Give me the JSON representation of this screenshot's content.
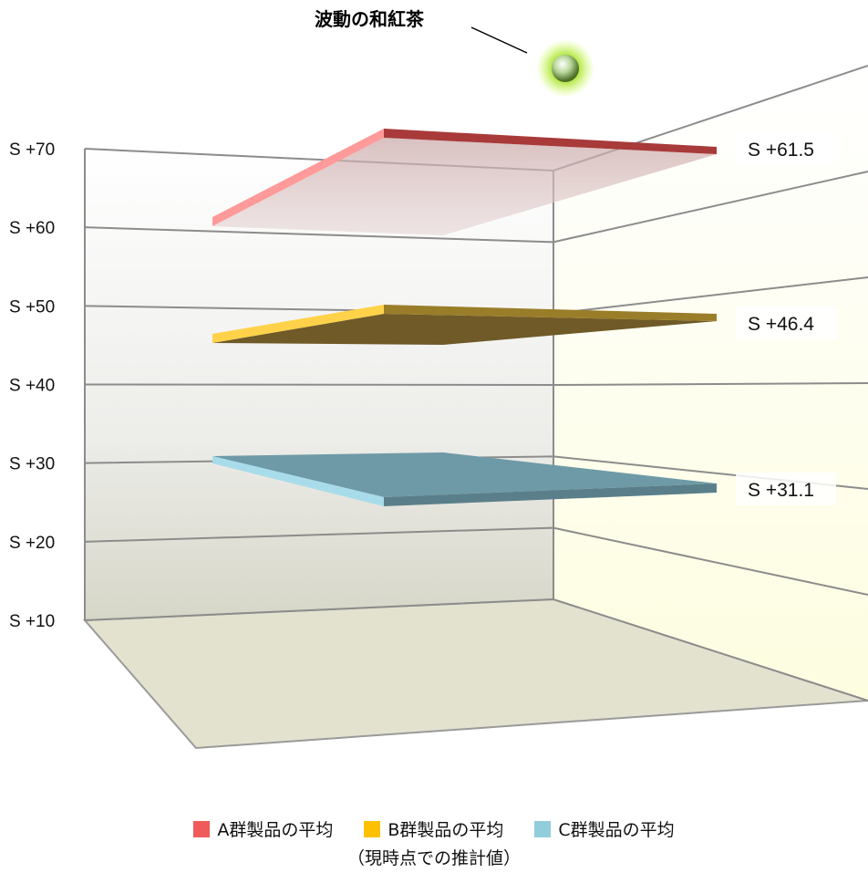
{
  "chart_data": {
    "type": "3d-bar-planes",
    "annotation": "波動の和紅茶",
    "y_ticks": [
      "S +70",
      "S +60",
      "S +50",
      "S +40",
      "S +30",
      "S +20",
      "S +10"
    ],
    "ylim": [
      10,
      70
    ],
    "grid": true,
    "legend_position": "bottom",
    "series": [
      {
        "name": "A群製品の平均",
        "value": 61.5,
        "label": "S +61.5",
        "color": "#f05a5a"
      },
      {
        "name": "B群製品の平均",
        "value": 46.4,
        "label": "S +46.4",
        "color": "#ffc000"
      },
      {
        "name": "C群製品の平均",
        "value": 31.1,
        "label": "S +31.1",
        "color": "#92cddc"
      }
    ],
    "note": "（現時点での推計値）"
  }
}
